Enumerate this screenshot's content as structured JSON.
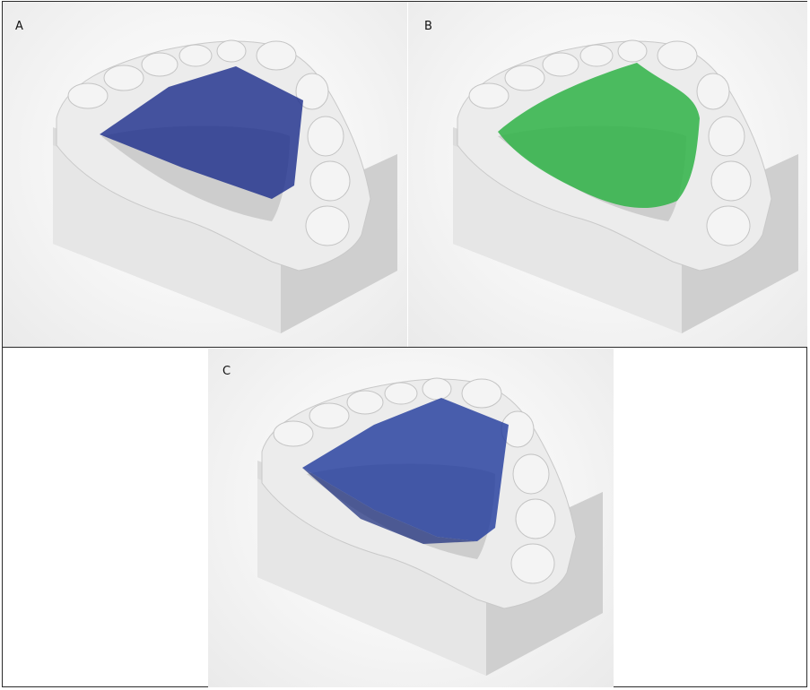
{
  "figure": {
    "panels": [
      {
        "id": "A",
        "label": "A",
        "overlay_color": "#1f2f8c"
      },
      {
        "id": "B",
        "label": "B",
        "overlay_color": "#2fb347"
      },
      {
        "id": "C",
        "label": "C",
        "overlay_color": "#1f3a9c"
      }
    ],
    "colors": {
      "model_base": "#e4e4e4",
      "model_shadow": "#bdbdbd",
      "border": "#2b2b2b"
    }
  }
}
